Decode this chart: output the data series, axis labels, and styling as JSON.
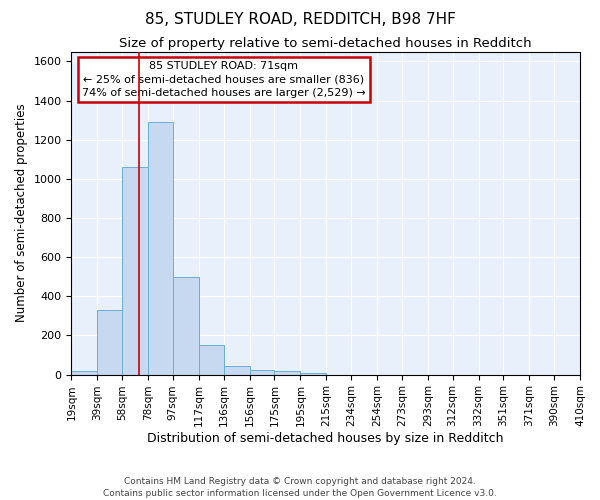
{
  "title": "85, STUDLEY ROAD, REDDITCH, B98 7HF",
  "subtitle": "Size of property relative to semi-detached houses in Redditch",
  "xlabel": "Distribution of semi-detached houses by size in Redditch",
  "ylabel": "Number of semi-detached properties",
  "footer_line1": "Contains HM Land Registry data © Crown copyright and database right 2024.",
  "footer_line2": "Contains public sector information licensed under the Open Government Licence v3.0.",
  "annotation_line1": "85 STUDLEY ROAD: 71sqm",
  "annotation_line2": "← 25% of semi-detached houses are smaller (836)",
  "annotation_line3": "74% of semi-detached houses are larger (2,529) →",
  "bin_edges": [
    19,
    39,
    58,
    78,
    97,
    117,
    136,
    156,
    175,
    195,
    215,
    234,
    254,
    273,
    293,
    312,
    332,
    351,
    371,
    390,
    410
  ],
  "bar_values": [
    20,
    330,
    1060,
    1290,
    500,
    150,
    45,
    25,
    20,
    10,
    0,
    0,
    0,
    0,
    0,
    0,
    0,
    0,
    0,
    0
  ],
  "bar_color": "#c6d9f0",
  "bar_edgecolor": "#6baed6",
  "vline_color": "#cc0000",
  "vline_sqm": 71,
  "annotation_box_edgecolor": "#cc0000",
  "bg_color": "#e8f0fb",
  "ylim": [
    0,
    1650
  ],
  "yticks": [
    0,
    200,
    400,
    600,
    800,
    1000,
    1200,
    1400,
    1600
  ],
  "title_fontsize": 11,
  "subtitle_fontsize": 9.5,
  "xlabel_fontsize": 9,
  "ylabel_fontsize": 8.5,
  "tick_fontsize": 7.5,
  "footer_fontsize": 6.5,
  "annot_fontsize": 8
}
